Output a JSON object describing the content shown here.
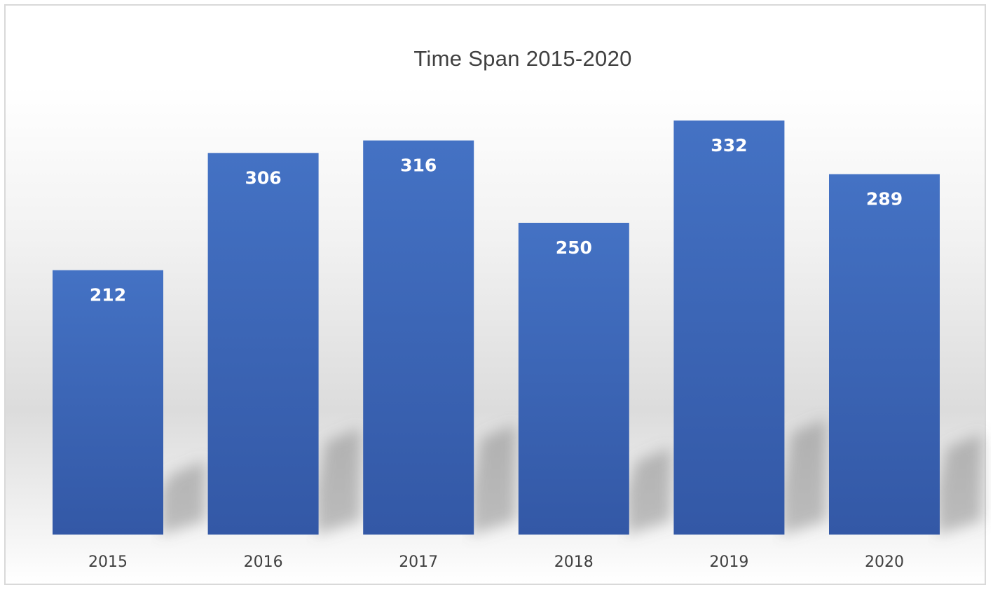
{
  "chart_data": {
    "type": "bar",
    "title": "Time Span 2015-2020",
    "xlabel": "",
    "ylabel": "",
    "categories": [
      "2015",
      "2016",
      "2017",
      "2018",
      "2019",
      "2020"
    ],
    "values": [
      212,
      306,
      316,
      250,
      332,
      289
    ],
    "ylim": [
      0,
      350
    ],
    "grid": false,
    "legend": "none",
    "data_labels": "inside-end",
    "bar_color": "#4472C4",
    "bar_color_dark": "#3358A6"
  }
}
